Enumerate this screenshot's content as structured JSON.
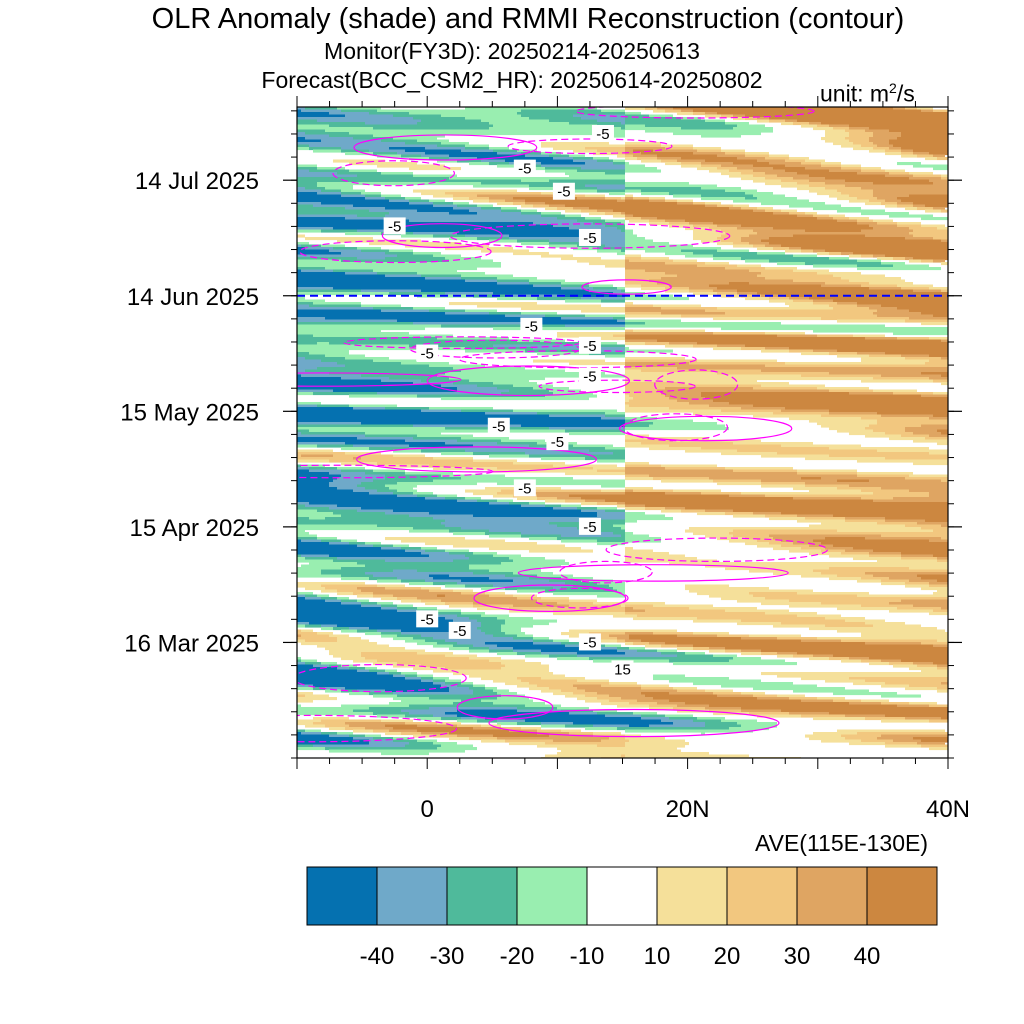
{
  "title": "OLR Anomaly (shade) and RMMI Reconstruction (contour)",
  "subtitle_monitor": "Monitor(FY3D): 20250214-20250613",
  "subtitle_forecast": "Forecast(BCC_CSM2_HR): 20250614-20250802",
  "unit_prefix": "unit: m",
  "unit_power": "2",
  "unit_suffix": "/s",
  "x_subtitle": "AVE(115E-130E)",
  "colors": {
    "levels": [
      "#0571b0",
      "#6fa9c9",
      "#4fba9b",
      "#99eeb0",
      "#ffffff",
      "#f5e09a",
      "#f2c77f",
      "#dfa562",
      "#cc8740"
    ],
    "contour": "#ff00ff",
    "forecast_line": "#0000ff"
  },
  "chart_data": {
    "type": "heatmap",
    "x_axis": {
      "range": [
        "10S",
        "40N"
      ],
      "tick_labels": [
        "0",
        "20N",
        "40N"
      ],
      "tick_values": [
        0,
        20,
        40
      ]
    },
    "y_axis": {
      "range": [
        "2025-02-14",
        "2025-08-02"
      ],
      "tick_labels": [
        "14 Jul 2025",
        "14 Jun 2025",
        "15 May 2025",
        "15 Apr 2025",
        "16 Mar 2025"
      ],
      "tick_dates": [
        "2025-07-14",
        "2025-06-14",
        "2025-05-15",
        "2025-04-15",
        "2025-03-16"
      ]
    },
    "forecast_start": "2025-06-14",
    "colorbar": {
      "labels": [
        "-40",
        "-30",
        "-20",
        "-10",
        "10",
        "20",
        "30",
        "40"
      ],
      "bounds": [
        -40,
        -30,
        -20,
        -10,
        10,
        20,
        30,
        40
      ]
    },
    "contour_labels": [
      {
        "text": "-5",
        "lat": 13.5,
        "date": "2025-07-26"
      },
      {
        "text": "-5",
        "lat": 7.5,
        "date": "2025-07-17"
      },
      {
        "text": "-5",
        "lat": 10.5,
        "date": "2025-07-11"
      },
      {
        "text": "-5",
        "lat": -2.5,
        "date": "2025-07-02"
      },
      {
        "text": "-5",
        "lat": 12.5,
        "date": "2025-06-29"
      },
      {
        "text": "-5",
        "lat": 8,
        "date": "2025-06-06"
      },
      {
        "text": "-5",
        "lat": 0,
        "date": "2025-05-30"
      },
      {
        "text": "-5",
        "lat": 12.5,
        "date": "2025-06-01"
      },
      {
        "text": "-5",
        "lat": 12.5,
        "date": "2025-05-24"
      },
      {
        "text": "-5",
        "lat": 5.5,
        "date": "2025-05-11"
      },
      {
        "text": "-5",
        "lat": 10,
        "date": "2025-05-07"
      },
      {
        "text": "-5",
        "lat": 7.5,
        "date": "2025-04-25"
      },
      {
        "text": "-5",
        "lat": 12.5,
        "date": "2025-04-15"
      },
      {
        "text": "-5",
        "lat": 0,
        "date": "2025-03-22"
      },
      {
        "text": "-5",
        "lat": 2.5,
        "date": "2025-03-19"
      },
      {
        "text": "-5",
        "lat": 12.5,
        "date": "2025-03-16"
      },
      {
        "text": "15",
        "lat": 15,
        "date": "2025-03-09"
      }
    ]
  }
}
